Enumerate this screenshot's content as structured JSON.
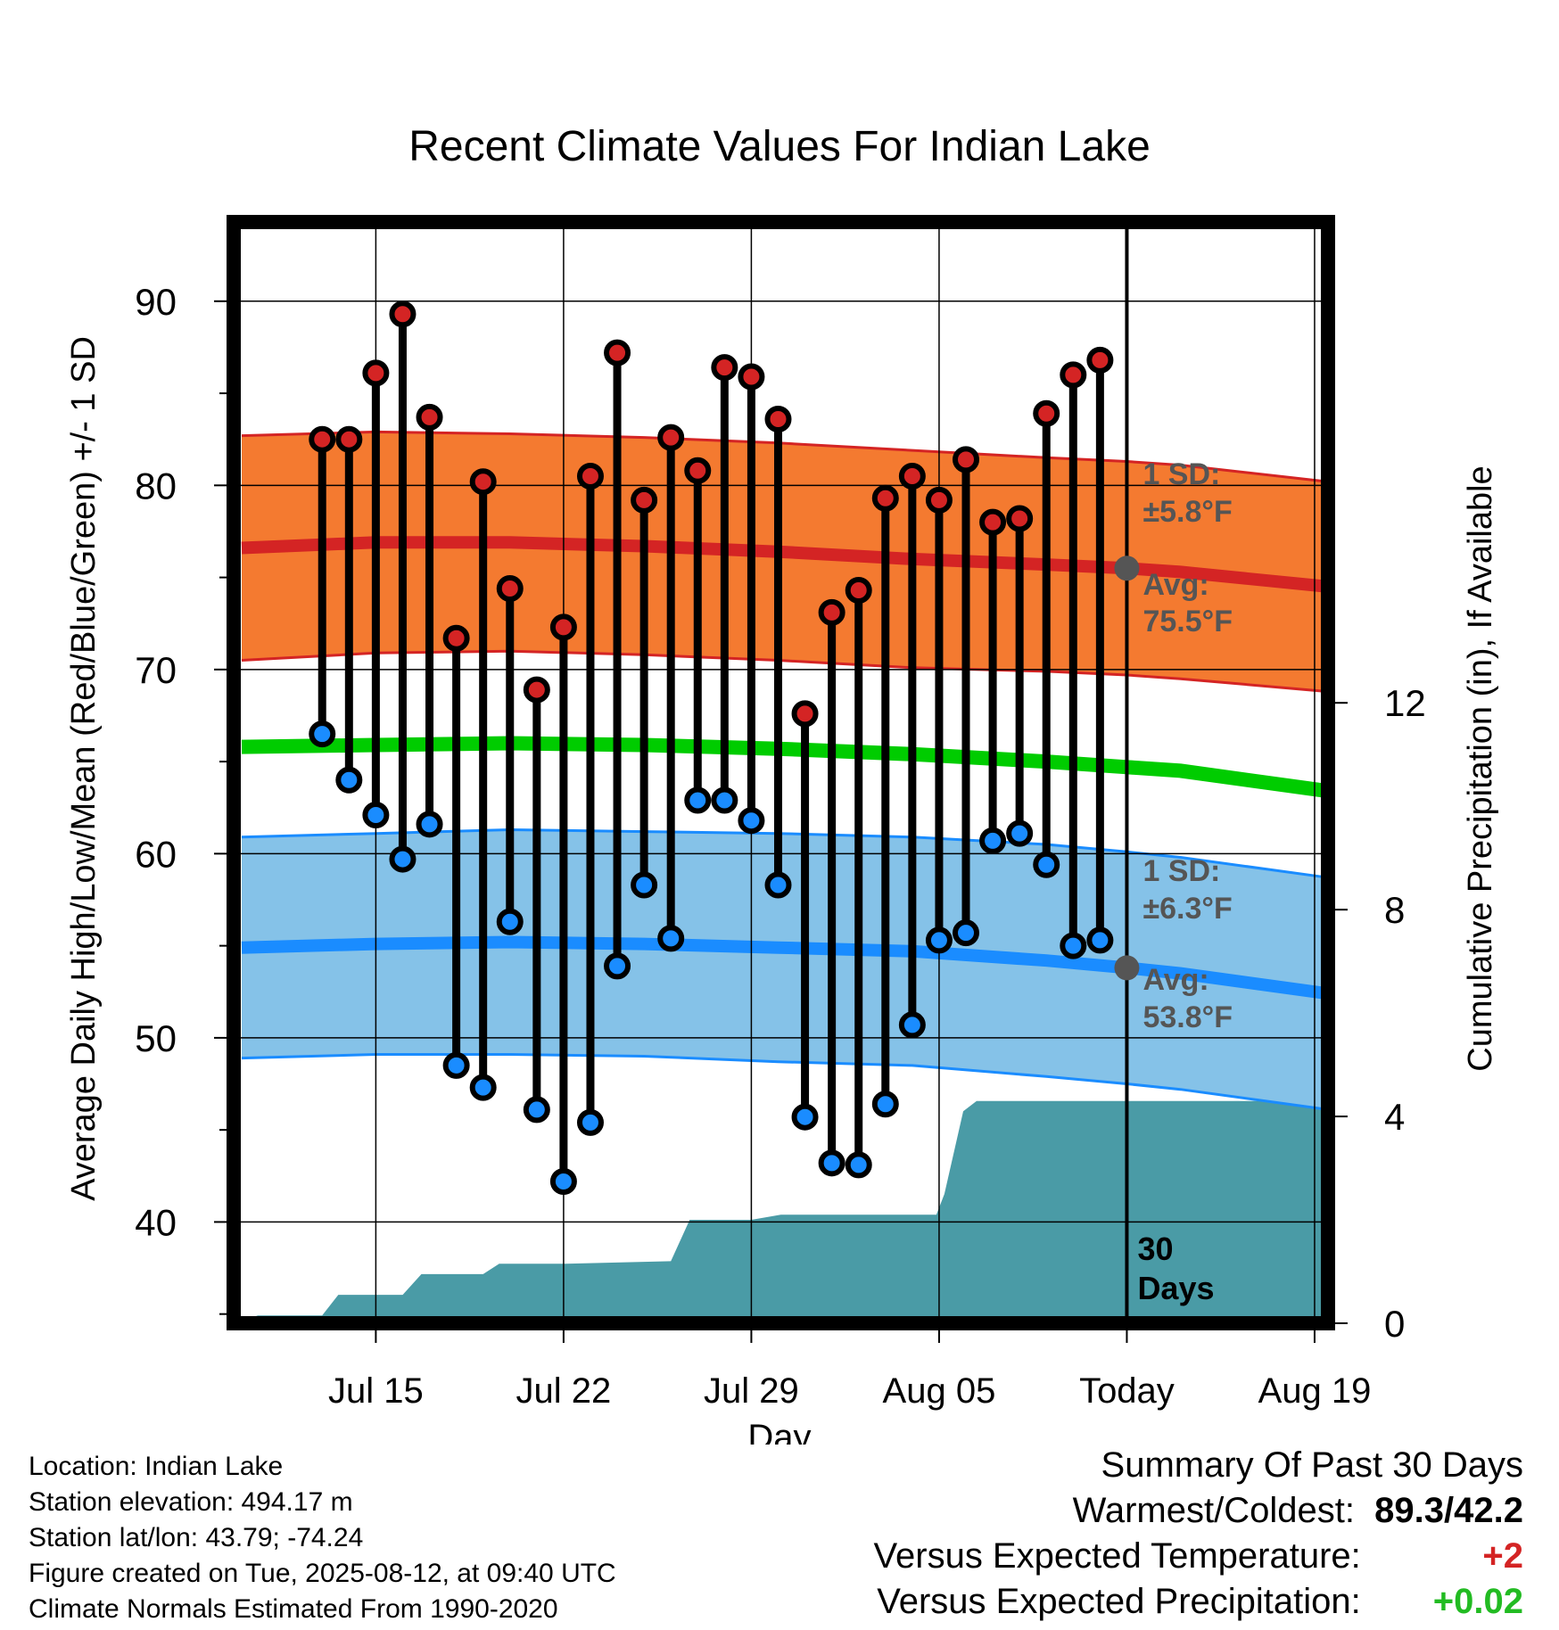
{
  "chart_data": {
    "type": "line",
    "title": "Recent Climate Values For Indian Lake",
    "xlabel": "Day",
    "ylabel": "Average Daily High/Low/Mean (Red/Blue/Green) +/- 1 SD",
    "y2label": "Cumulative Precipitation (in), If Available",
    "ylim": [
      34.5,
      94.3
    ],
    "y_ticks": [
      40,
      50,
      60,
      70,
      80,
      90
    ],
    "y2lim": [
      0,
      21.3
    ],
    "y2_ticks": [
      0,
      4,
      8,
      12
    ],
    "xlim": [
      9.7,
      50.5
    ],
    "x_ticks": [
      {
        "day": 15,
        "label": "Jul 15"
      },
      {
        "day": 22,
        "label": "Jul 22"
      },
      {
        "day": 29,
        "label": "Jul 29"
      },
      {
        "day": 36,
        "label": "Aug 05"
      },
      {
        "day": 43,
        "label": "Today"
      },
      {
        "day": 50,
        "label": "Aug 19"
      }
    ],
    "today_label": "30\nDays",
    "grid": true,
    "days": [
      13,
      14,
      15,
      16,
      17,
      18,
      19,
      20,
      21,
      22,
      23,
      24,
      25,
      26,
      27,
      28,
      29,
      30,
      31,
      32,
      33,
      34,
      35,
      36,
      37,
      38,
      39,
      40,
      41,
      42
    ],
    "highs": [
      82.5,
      82.5,
      86.1,
      89.3,
      83.7,
      71.7,
      80.2,
      74.4,
      68.9,
      72.3,
      80.5,
      87.2,
      79.2,
      82.6,
      80.8,
      86.4,
      85.9,
      83.6,
      67.6,
      73.1,
      74.3,
      79.3,
      80.5,
      79.2,
      81.4,
      78.0,
      78.2,
      83.9,
      86.0,
      86.8
    ],
    "lows": [
      66.5,
      64.0,
      62.1,
      59.7,
      61.6,
      48.5,
      47.3,
      56.3,
      46.1,
      42.2,
      45.4,
      53.9,
      58.3,
      55.4,
      62.9,
      62.9,
      61.8,
      58.3,
      45.7,
      43.2,
      43.1,
      46.4,
      50.7,
      55.3,
      55.7,
      60.7,
      61.1,
      59.4,
      55.0,
      55.3
    ],
    "normals": {
      "days": [
        10,
        15,
        20,
        25,
        30,
        35,
        40,
        43,
        45,
        50.5
      ],
      "high_mean": [
        76.6,
        76.9,
        76.9,
        76.7,
        76.4,
        76.0,
        75.7,
        75.5,
        75.3,
        74.5
      ],
      "high_sd": [
        6.1,
        6.0,
        5.9,
        5.9,
        5.9,
        5.9,
        5.8,
        5.8,
        5.8,
        5.7
      ],
      "low_mean": [
        54.9,
        55.1,
        55.2,
        55.1,
        54.9,
        54.7,
        54.2,
        53.8,
        53.5,
        52.4
      ],
      "low_sd": [
        6.0,
        6.0,
        6.1,
        6.1,
        6.2,
        6.2,
        6.3,
        6.3,
        6.3,
        6.3
      ],
      "mean": [
        65.8,
        65.9,
        66.0,
        65.9,
        65.7,
        65.4,
        65.0,
        64.7,
        64.5,
        63.4
      ]
    },
    "precip": {
      "days": [
        9.7,
        10.6,
        13,
        13.6,
        16,
        16.7,
        19,
        19.6,
        21,
        22,
        26,
        26.7,
        29,
        30.1,
        30.6,
        35.9,
        36.2,
        36.9,
        37.4,
        43,
        50.5
      ],
      "cumulative": [
        0,
        0.15,
        0.15,
        0.55,
        0.55,
        0.95,
        0.95,
        1.15,
        1.15,
        1.15,
        1.2,
        2.0,
        2.0,
        2.1,
        2.1,
        2.1,
        2.5,
        4.1,
        4.3,
        4.3,
        4.3
      ]
    },
    "annotations": {
      "high_sd": "±5.8°F",
      "high_avg": "75.5°F",
      "low_sd": "±6.3°F",
      "low_avg": "53.8°F",
      "sd_label": "1 SD:",
      "avg_label": "Avg:"
    },
    "colors": {
      "high_band": "#f47a30",
      "high_line": "#d42424",
      "mean_line": "#00cc00",
      "low_band": "#85c2e8",
      "low_line": "#1a8cff",
      "precip": "#4a9ba6",
      "high_dot": "#d42424",
      "low_dot": "#1a8cff",
      "annotation": "#555555",
      "today_dot": "#555555"
    }
  },
  "info": {
    "location": "Location: Indian Lake",
    "elevation": "Station elevation: 494.17 m",
    "latlon": "Station lat/lon: 43.79; -74.24",
    "created": "Figure created on Tue, 2025-08-12, at 09:40 UTC",
    "normals": "Climate Normals Estimated From 1990-2020"
  },
  "summary": {
    "title": "Summary Of Past 30 Days",
    "warm_cold_label": "Warmest/Coldest:",
    "warm_cold_value": "89.3/42.2",
    "temp_label": "Versus Expected Temperature:",
    "temp_value": "+2",
    "temp_color": "#d42424",
    "precip_label": "Versus Expected Precipitation:",
    "precip_value": "+0.02",
    "precip_color": "#22bb22"
  }
}
